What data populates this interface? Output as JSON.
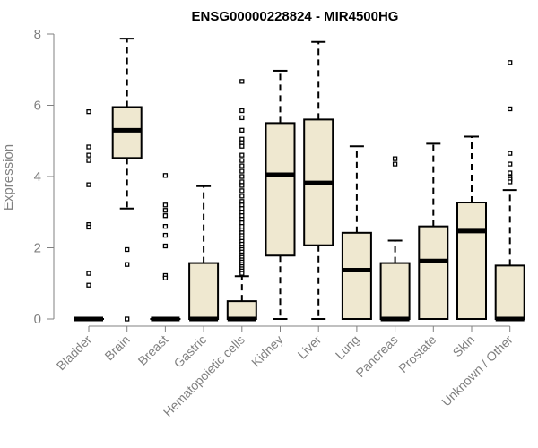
{
  "chart_data": {
    "type": "boxplot",
    "title": "ENSG00000228824 - MIR4500HG",
    "ylabel": "Expression",
    "xlabel": "",
    "ylim": [
      0,
      8
    ],
    "yticks": [
      0,
      2,
      4,
      6,
      8
    ],
    "grid": false,
    "box_color": "#efe8d0",
    "categories": [
      "Bladder",
      "Brain",
      "Breast",
      "Gastric",
      "Hematopoietic cells",
      "Kidney",
      "Liver",
      "Lung",
      "Pancreas",
      "Prostate",
      "Skin",
      "Unknown / Other"
    ],
    "series": [
      {
        "category": "Bladder",
        "min": 0,
        "q1": 0,
        "median": 0,
        "q3": 0,
        "max": 0,
        "outliers": [
          5.82,
          4.83,
          4.6,
          4.45,
          3.77,
          2.65,
          2.58,
          1.28,
          0.95
        ]
      },
      {
        "category": "Brain",
        "min": 3.1,
        "q1": 4.52,
        "median": 5.3,
        "q3": 5.95,
        "max": 7.87,
        "outliers": [
          1.95,
          1.53,
          0
        ]
      },
      {
        "category": "Breast",
        "min": 0,
        "q1": 0,
        "median": 0,
        "q3": 0,
        "max": 0,
        "outliers": [
          4.03,
          3.2,
          3.05,
          2.9,
          2.6,
          2.35,
          2.05,
          1.22,
          1.15
        ]
      },
      {
        "category": "Gastric",
        "min": 0,
        "q1": 0,
        "median": 0,
        "q3": 1.57,
        "max": 3.73,
        "outliers": []
      },
      {
        "category": "Hematopoietic cells",
        "min": 0,
        "q1": 0,
        "median": 0,
        "q3": 0.5,
        "max": 1.2,
        "outliers": [
          6.67,
          5.85,
          5.65,
          5.3,
          5.05,
          4.95,
          4.85,
          4.6,
          4.45,
          4.3,
          4.15,
          4.0,
          3.85,
          3.75,
          3.6,
          3.45,
          3.3,
          3.2,
          3.1,
          3.0,
          2.9,
          2.8,
          2.7,
          2.6,
          2.5,
          2.42,
          2.34,
          2.26,
          2.18,
          2.1,
          2.02,
          1.95,
          1.88,
          1.8,
          1.73,
          1.66,
          1.6,
          1.53,
          1.47,
          1.41,
          1.35,
          1.28
        ]
      },
      {
        "category": "Kidney",
        "min": 0,
        "q1": 1.78,
        "median": 4.05,
        "q3": 5.5,
        "max": 6.97,
        "outliers": []
      },
      {
        "category": "Liver",
        "min": 0,
        "q1": 2.07,
        "median": 3.82,
        "q3": 5.6,
        "max": 7.78,
        "outliers": []
      },
      {
        "category": "Lung",
        "min": 0,
        "q1": 0,
        "median": 1.37,
        "q3": 2.42,
        "max": 4.85,
        "outliers": []
      },
      {
        "category": "Pancreas",
        "min": 0,
        "q1": 0,
        "median": 0,
        "q3": 1.57,
        "max": 2.2,
        "outliers": [
          4.5,
          4.35
        ]
      },
      {
        "category": "Prostate",
        "min": 0,
        "q1": 0,
        "median": 1.63,
        "q3": 2.6,
        "max": 4.92,
        "outliers": []
      },
      {
        "category": "Skin",
        "min": 0,
        "q1": 0,
        "median": 2.47,
        "q3": 3.27,
        "max": 5.12,
        "outliers": []
      },
      {
        "category": "Unknown / Other",
        "min": 0,
        "q1": 0,
        "median": 0,
        "q3": 1.5,
        "max": 3.62,
        "outliers": [
          7.2,
          5.9,
          4.65,
          4.35,
          4.1,
          3.98,
          3.92,
          3.85
        ]
      }
    ]
  }
}
